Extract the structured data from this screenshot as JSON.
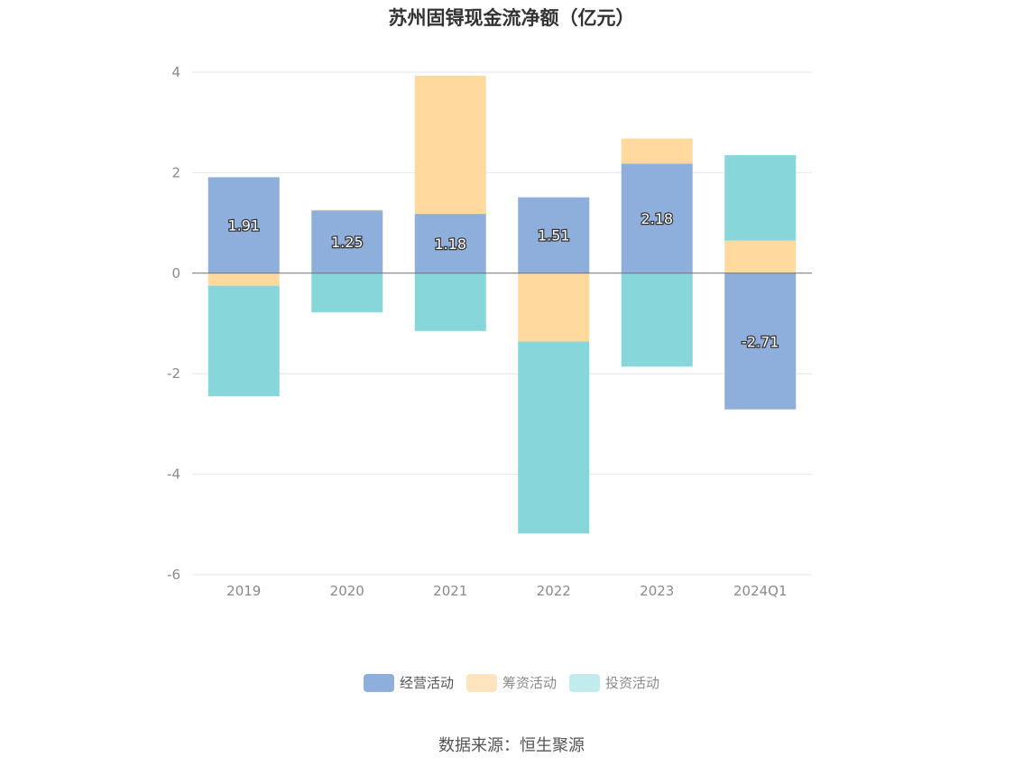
{
  "chart_data": {
    "type": "bar",
    "stacked": true,
    "title": "苏州固锝现金流净额（亿元）",
    "categories": [
      "2019",
      "2020",
      "2021",
      "2022",
      "2023",
      "2024Q1"
    ],
    "ylim": [
      -6,
      4
    ],
    "yticks": [
      4,
      2,
      0,
      -2,
      -4,
      -6
    ],
    "grid": true,
    "legend_position": "bottom",
    "series": [
      {
        "name": "经营活动",
        "color": "#8eaedb",
        "values": [
          1.91,
          1.25,
          1.18,
          1.51,
          2.18,
          -2.71
        ],
        "labels": [
          "1.91",
          "1.25",
          "1.18",
          "1.51",
          "2.18",
          "-2.71"
        ]
      },
      {
        "name": "筹资活动",
        "color": "#ffd99d",
        "values": [
          -0.25,
          0.01,
          2.75,
          -1.36,
          0.5,
          0.65
        ]
      },
      {
        "name": "投资活动",
        "color": "#87d6d9",
        "values": [
          -2.2,
          -0.78,
          -1.15,
          -3.82,
          -1.86,
          1.7
        ]
      }
    ],
    "source": "数据来源：恒生聚源"
  },
  "legend_colors": {
    "经营活动": "#8eaedb",
    "筹资活动": "#ffe5be",
    "投资活动": "#c2ebee"
  }
}
